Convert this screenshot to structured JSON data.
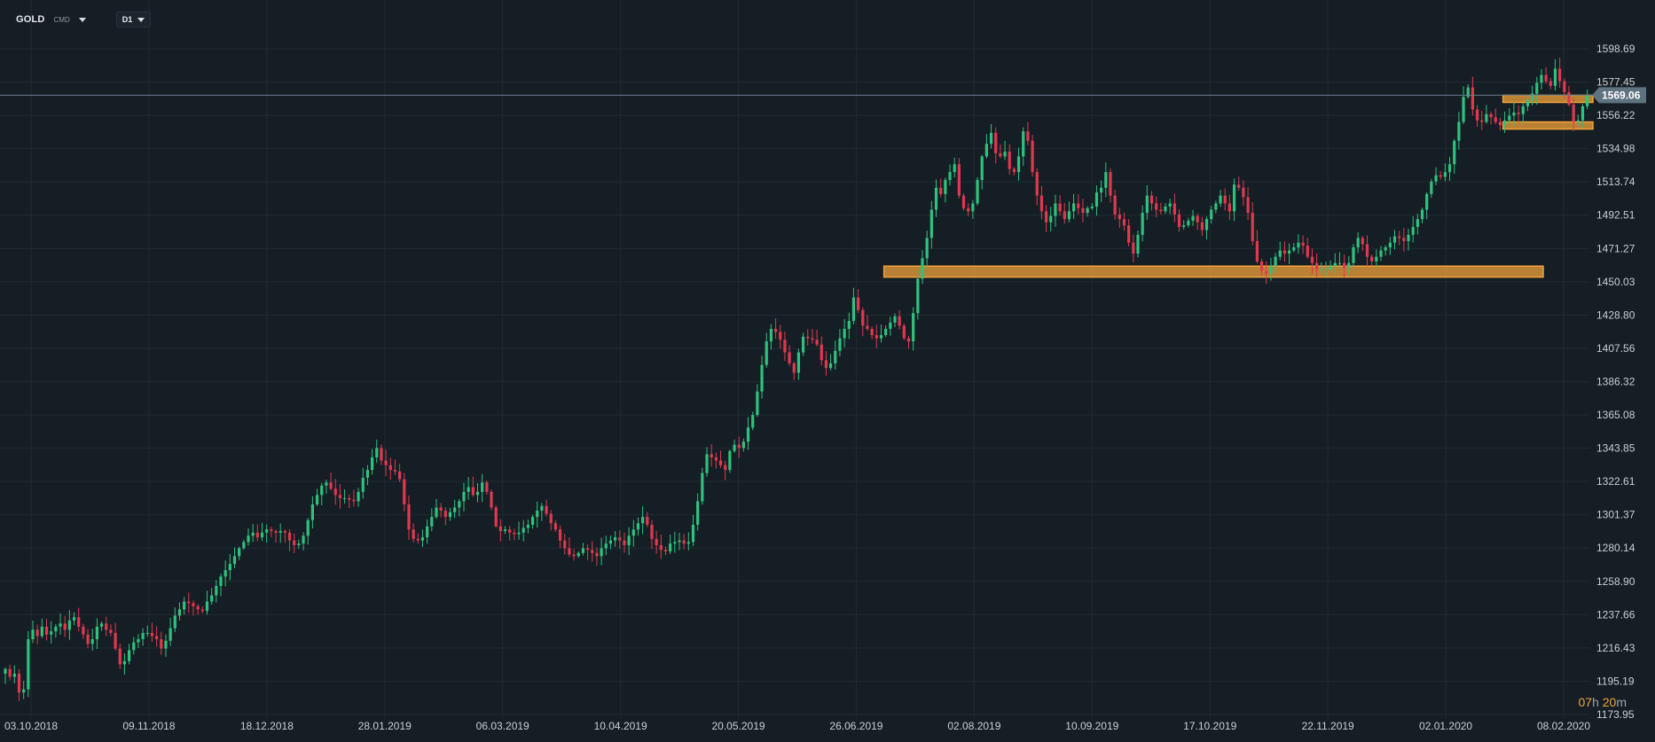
{
  "toolbar": {
    "symbol": "GOLD",
    "asset_class": "CMD",
    "timeframe": "D1"
  },
  "countdown": {
    "hours": "07",
    "hours_unit": "h",
    "minutes": "20",
    "minutes_unit": "m"
  },
  "colors": {
    "background": "#161e25",
    "grid": "#202a33",
    "up": "#2ec27e",
    "down": "#e0394f",
    "zone": "#f2a33a",
    "price_line": "#6b7f8d",
    "text": "#c9ced3"
  },
  "chart_data": {
    "type": "candlestick",
    "title": "",
    "symbol": "GOLD",
    "timeframe": "D1",
    "ylim": [
      1165,
      1612
    ],
    "y_ticks": [
      1598.69,
      1577.45,
      1556.22,
      1534.98,
      1513.74,
      1492.51,
      1471.27,
      1450.03,
      1428.8,
      1407.56,
      1386.32,
      1365.08,
      1343.85,
      1322.61,
      1301.37,
      1280.14,
      1258.9,
      1237.66,
      1216.43,
      1195.19,
      1173.95
    ],
    "x_tick_labels": [
      "03.10.2018",
      "09.11.2018",
      "18.12.2018",
      "28.01.2019",
      "06.03.2019",
      "10.04.2019",
      "20.05.2019",
      "26.06.2019",
      "02.08.2019",
      "10.09.2019",
      "17.10.2019",
      "22.11.2019",
      "02.01.2020",
      "08.02.2020"
    ],
    "current_price": 1569.06,
    "grid": true,
    "zones": [
      {
        "from_index": 192,
        "to_index": 335,
        "low": 1453,
        "high": 1460
      },
      {
        "from_index": 327,
        "to_index": 347,
        "low": 1565,
        "high": 1569
      },
      {
        "from_index": 327,
        "to_index": 347,
        "low": 1548,
        "high": 1552
      }
    ],
    "closes": [
      1203,
      1198,
      1200,
      1188,
      1190,
      1222,
      1228,
      1224,
      1230,
      1225,
      1227,
      1230,
      1232,
      1228,
      1234,
      1236,
      1230,
      1225,
      1219,
      1222,
      1230,
      1232,
      1228,
      1226,
      1216,
      1206,
      1208,
      1215,
      1220,
      1222,
      1226,
      1226,
      1224,
      1222,
      1216,
      1221,
      1229,
      1237,
      1241,
      1246,
      1245,
      1243,
      1241,
      1240,
      1246,
      1250,
      1256,
      1262,
      1266,
      1270,
      1275,
      1280,
      1284,
      1288,
      1290,
      1287,
      1290,
      1292,
      1291,
      1290,
      1291,
      1290,
      1285,
      1282,
      1283,
      1288,
      1298,
      1308,
      1314,
      1320,
      1322,
      1318,
      1314,
      1312,
      1312,
      1311,
      1310,
      1316,
      1325,
      1330,
      1338,
      1344,
      1336,
      1333,
      1330,
      1329,
      1324,
      1308,
      1292,
      1286,
      1285,
      1287,
      1294,
      1300,
      1306,
      1304,
      1300,
      1303,
      1306,
      1310,
      1316,
      1319,
      1314,
      1316,
      1322,
      1316,
      1306,
      1294,
      1291,
      1292,
      1290,
      1289,
      1290,
      1293,
      1295,
      1300,
      1304,
      1307,
      1302,
      1296,
      1292,
      1285,
      1280,
      1276,
      1275,
      1277,
      1280,
      1279,
      1277,
      1275,
      1280,
      1283,
      1285,
      1287,
      1285,
      1282,
      1288,
      1292,
      1296,
      1300,
      1295,
      1286,
      1282,
      1279,
      1278,
      1283,
      1284,
      1285,
      1283,
      1284,
      1295,
      1310,
      1328,
      1340,
      1338,
      1336,
      1333,
      1330,
      1342,
      1346,
      1344,
      1348,
      1357,
      1365,
      1380,
      1397,
      1412,
      1420,
      1418,
      1413,
      1405,
      1398,
      1392,
      1405,
      1415,
      1414,
      1413,
      1410,
      1400,
      1395,
      1398,
      1406,
      1414,
      1420,
      1425,
      1440,
      1432,
      1422,
      1420,
      1416,
      1414,
      1416,
      1420,
      1424,
      1428,
      1422,
      1414,
      1412,
      1430,
      1452,
      1465,
      1478,
      1496,
      1510,
      1506,
      1515,
      1520,
      1525,
      1505,
      1497,
      1495,
      1500,
      1515,
      1530,
      1538,
      1545,
      1532,
      1530,
      1533,
      1522,
      1520,
      1530,
      1546,
      1540,
      1520,
      1505,
      1495,
      1488,
      1492,
      1500,
      1495,
      1490,
      1495,
      1500,
      1497,
      1494,
      1497,
      1498,
      1507,
      1510,
      1520,
      1505,
      1493,
      1490,
      1486,
      1475,
      1468,
      1480,
      1494,
      1505,
      1500,
      1496,
      1495,
      1498,
      1500,
      1493,
      1485,
      1486,
      1489,
      1492,
      1488,
      1483,
      1490,
      1496,
      1500,
      1505,
      1500,
      1495,
      1512,
      1510,
      1504,
      1494,
      1476,
      1463,
      1457,
      1455,
      1460,
      1466,
      1470,
      1468,
      1470,
      1472,
      1475,
      1473,
      1466,
      1462,
      1458,
      1458,
      1458,
      1460,
      1462,
      1462,
      1459,
      1462,
      1472,
      1478,
      1474,
      1466,
      1463,
      1466,
      1470,
      1472,
      1475,
      1479,
      1478,
      1476,
      1480,
      1485,
      1490,
      1496,
      1506,
      1514,
      1518,
      1517,
      1520,
      1525,
      1540,
      1552,
      1568,
      1574,
      1560,
      1553,
      1552,
      1557,
      1555,
      1552,
      1550,
      1553,
      1556,
      1558,
      1557,
      1562,
      1566,
      1570,
      1577,
      1582,
      1578,
      1575,
      1586,
      1578,
      1571,
      1563,
      1552,
      1553,
      1562,
      1569
    ]
  }
}
